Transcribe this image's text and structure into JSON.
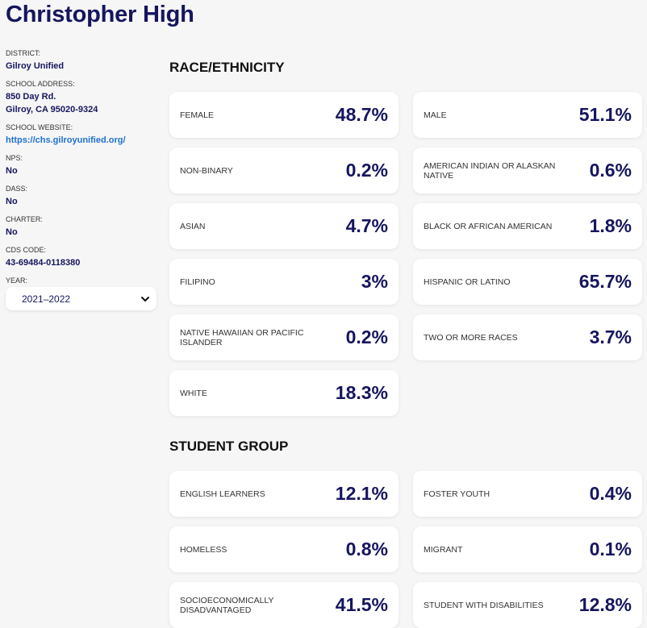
{
  "school": {
    "name": "Christopher High"
  },
  "sidebar": {
    "district": {
      "label": "DISTRICT:",
      "value": "Gilroy Unified"
    },
    "address": {
      "label": "SCHOOL ADDRESS:",
      "line1": "850 Day Rd.",
      "line2": "Gilroy, CA 95020-9324"
    },
    "website": {
      "label": "SCHOOL WEBSITE:",
      "value": "https://chs.gilroyunified.org/"
    },
    "nps": {
      "label": "NPS:",
      "value": "No"
    },
    "dass": {
      "label": "DASS:",
      "value": "No"
    },
    "charter": {
      "label": "CHARTER:",
      "value": "No"
    },
    "cds": {
      "label": "CDS CODE:",
      "value": "43-69484-0118380"
    },
    "year": {
      "label": "YEAR:",
      "selected": "2021–2022",
      "icon": "chevron-down-icon"
    }
  },
  "race": {
    "title": "RACE/ETHNICITY",
    "cards": [
      {
        "label": "FEMALE",
        "value": "48.7%"
      },
      {
        "label": "MALE",
        "value": "51.1%"
      },
      {
        "label": "NON-BINARY",
        "value": "0.2%"
      },
      {
        "label": "AMERICAN INDIAN OR ALASKAN NATIVE",
        "value": "0.6%"
      },
      {
        "label": "ASIAN",
        "value": "4.7%"
      },
      {
        "label": "BLACK OR AFRICAN AMERICAN",
        "value": "1.8%"
      },
      {
        "label": "FILIPINO",
        "value": "3%"
      },
      {
        "label": "HISPANIC OR LATINO",
        "value": "65.7%"
      },
      {
        "label": "NATIVE HAWAIIAN OR PACIFIC ISLANDER",
        "value": "0.2%"
      },
      {
        "label": "TWO OR MORE RACES",
        "value": "3.7%"
      },
      {
        "label": "WHITE",
        "value": "18.3%"
      }
    ]
  },
  "student": {
    "title": "STUDENT GROUP",
    "cards": [
      {
        "label": "ENGLISH LEARNERS",
        "value": "12.1%"
      },
      {
        "label": "FOSTER YOUTH",
        "value": "0.4%"
      },
      {
        "label": "HOMELESS",
        "value": "0.8%"
      },
      {
        "label": "MIGRANT",
        "value": "0.1%"
      },
      {
        "label": "SOCIOECONOMICALLY DISADVANTAGED",
        "value": "41.5%"
      },
      {
        "label": "STUDENT WITH DISABILITIES",
        "value": "12.8%"
      }
    ]
  },
  "colors": {
    "accent": "#15165e",
    "link": "#1f6fd1",
    "background": "#f6f6f6"
  }
}
